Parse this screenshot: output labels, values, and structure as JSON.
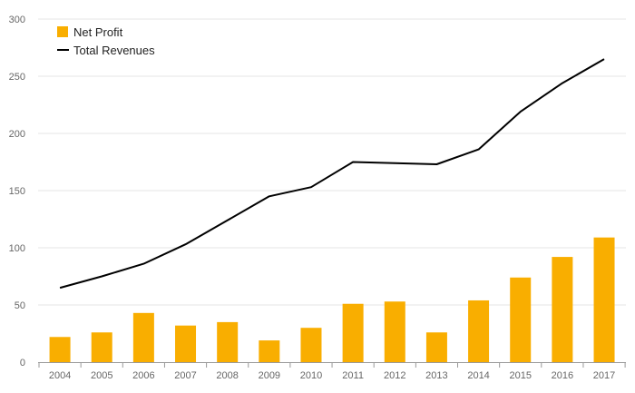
{
  "chart_data": {
    "type": "bar+line",
    "categories": [
      "2004",
      "2005",
      "2006",
      "2007",
      "2008",
      "2009",
      "2010",
      "2011",
      "2012",
      "2013",
      "2014",
      "2015",
      "2016",
      "2017"
    ],
    "series": [
      {
        "name": "Net Profit",
        "type": "bar",
        "color": "#F9AE00",
        "values": [
          22,
          26,
          43,
          32,
          35,
          19,
          30,
          51,
          53,
          26,
          54,
          74,
          92,
          109
        ]
      },
      {
        "name": "Total Revenues",
        "type": "line",
        "color": "#000000",
        "values": [
          65,
          75,
          86,
          103,
          124,
          145,
          153,
          175,
          174,
          173,
          186,
          219,
          244,
          265
        ]
      }
    ],
    "y_ticks": [
      "0",
      "50",
      "100",
      "150",
      "200",
      "250",
      "300"
    ],
    "ylim": [
      0,
      300
    ],
    "legend_position": "top-left",
    "grid": true
  }
}
